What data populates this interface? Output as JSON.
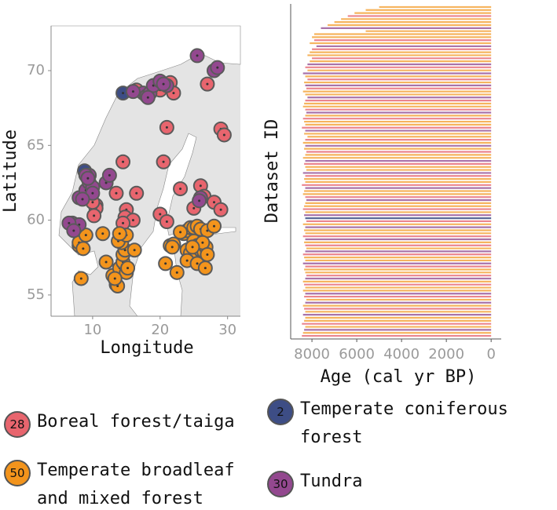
{
  "chart_data": [
    {
      "type": "scatter",
      "xlabel": "Longitude",
      "ylabel": "Latitude",
      "xlim": [
        3.84,
        31.9
      ],
      "ylim": [
        53.58,
        72.99
      ],
      "xticks": [
        10,
        20,
        30
      ],
      "yticks": [
        55,
        60,
        65,
        70
      ],
      "series": [
        {
          "name": "Boreal forest/taiga",
          "color": "#e8656e",
          "count": 28,
          "x": [
            14.5,
            20.5,
            21,
            21.5,
            22,
            20,
            27,
            29,
            29.5,
            13.5,
            16.5,
            15,
            14.8,
            16,
            14.5,
            10.5,
            10.5,
            10,
            23,
            26,
            26.5,
            25,
            28,
            29,
            20,
            21,
            10.2,
            16.5
          ],
          "y": [
            63.9,
            63.9,
            66.2,
            69.2,
            68.5,
            68.7,
            69.1,
            66.1,
            65.7,
            61.8,
            61.8,
            60.7,
            60.2,
            60,
            59.8,
            61,
            60.8,
            61.2,
            62.1,
            62.3,
            61.6,
            60.8,
            61.2,
            60.7,
            60.4,
            59.9,
            60.3,
            68.7
          ]
        },
        {
          "name": "Temperate coniferous forest",
          "color": "#3d4d85",
          "count": 2,
          "x": [
            8.8,
            14.5
          ],
          "y": [
            63.3,
            68.5
          ]
        },
        {
          "name": "Temperate broadleaf and mixed forest",
          "color": "#f3941c",
          "count": 50,
          "x": [
            8.3,
            8,
            8,
            9,
            11.5,
            12,
            13,
            13.5,
            13.7,
            14,
            14.5,
            14.5,
            14.8,
            14.3,
            13.8,
            15,
            15.2,
            16.2,
            15,
            14,
            21.5,
            22,
            20.8,
            22.5,
            23.5,
            24,
            24.5,
            25,
            25.5,
            26,
            27,
            28,
            24,
            24.5,
            25,
            24,
            25,
            25.5,
            26,
            26.5,
            26.8,
            26.3,
            27,
            25.5,
            26.7,
            23,
            21.8,
            24.8,
            13.3,
            8.6
          ],
          "y": [
            56.1,
            58.3,
            58.5,
            59,
            59.1,
            57.2,
            56.3,
            55.7,
            55.6,
            56.8,
            57.2,
            57.7,
            58,
            58.5,
            58.6,
            56.5,
            56.8,
            58,
            59,
            59.1,
            58.3,
            58.4,
            57.1,
            56.5,
            59.1,
            59.3,
            59.5,
            59.5,
            59.6,
            59.4,
            59.3,
            59.6,
            58,
            57.8,
            57.4,
            57.3,
            58.6,
            58.3,
            58,
            57.9,
            58.2,
            58.5,
            57.7,
            57.1,
            56.8,
            59.2,
            58.2,
            58.2,
            56.1,
            58.1
          ]
        },
        {
          "name": "Tundra",
          "color": "#93488f",
          "count": 30,
          "x": [
            7,
            7.5,
            8,
            6.5,
            8,
            9,
            9.5,
            9.5,
            10,
            10,
            12,
            12.5,
            9,
            8.5,
            7.2,
            17.5,
            18,
            18.5,
            19,
            20,
            21,
            20.5,
            25.5,
            28,
            28.5,
            16,
            18.2,
            26,
            25.8,
            9.3
          ],
          "y": [
            59.8,
            59.5,
            59.7,
            59.8,
            61.5,
            62,
            62.5,
            63,
            62.2,
            61.8,
            62.5,
            63,
            63,
            61.4,
            59.3,
            68.5,
            68.3,
            68.5,
            69,
            69.3,
            69,
            69.1,
            71,
            70,
            70.2,
            68.6,
            68.2,
            61.5,
            61.3,
            62.8
          ]
        }
      ]
    },
    {
      "type": "bar",
      "orientation": "horizontal",
      "xlabel": "Age (cal yr BP)",
      "ylabel": "Dataset ID",
      "xlim": [
        8950,
        -450
      ],
      "xticks": [
        8000,
        6000,
        4000,
        2000,
        0
      ],
      "values": [
        5000,
        5600,
        6100,
        6400,
        6700,
        7000,
        7300,
        7600,
        5600,
        7900,
        8000,
        7900,
        8100,
        7800,
        8000,
        8100,
        8200,
        8000,
        8100,
        8200,
        8300,
        8200,
        8400,
        8300,
        8200,
        8350,
        8300,
        8250,
        8400,
        8300,
        8200,
        8300,
        8350,
        8400,
        8300,
        8250,
        8300,
        8400,
        8350,
        8300,
        8450,
        8300,
        8350,
        8200,
        8300,
        8400,
        8300,
        8350,
        8250,
        8300,
        8400,
        8300,
        8350,
        8300,
        8250,
        8400,
        8300,
        8350,
        8300,
        8450,
        8300,
        8350,
        8400,
        8300,
        8250,
        8300,
        8350,
        8400,
        8300,
        8350,
        8300,
        8250,
        8400,
        8300,
        8350,
        8300,
        8400,
        8300,
        8350,
        8300,
        8250,
        8300,
        8400,
        8350,
        8300,
        8400,
        8300,
        8350,
        8300,
        8250,
        8300,
        8400,
        8350,
        8300,
        8400,
        8300,
        8350,
        8250,
        8300,
        8400,
        8350,
        8300,
        8400,
        8300,
        8350,
        8450,
        8300,
        8350,
        8400,
        8450
      ],
      "colors": [
        "#f5a742",
        "#f5a742",
        "#f5a742",
        "#e8707a",
        "#f5a742",
        "#f5a742",
        "#f5a742",
        "#9a5a9a",
        "#f5a742",
        "#f5a742",
        "#f5a742",
        "#e8707a",
        "#f5a742",
        "#9a5a9a",
        "#e8707a",
        "#f5a742",
        "#f5a742",
        "#e8707a",
        "#f5a742",
        "#9a5a9a",
        "#e8707a",
        "#f5a742",
        "#9a5a9a",
        "#f5a742",
        "#e8707a",
        "#f5a742",
        "#9a5a9a",
        "#e8707a",
        "#f5a742",
        "#f5a742",
        "#9a5a9a",
        "#e8707a",
        "#f5a742",
        "#f5a742",
        "#e8707a",
        "#9a5a9a",
        "#f5a742",
        "#e8707a",
        "#f5a742",
        "#f5a742",
        "#e8707a",
        "#9a5a9a",
        "#f5a742",
        "#f5a742",
        "#e8707a",
        "#f5a742",
        "#9a5a9a",
        "#f5a742",
        "#e8707a",
        "#f5a742",
        "#f5a742",
        "#9a5a9a",
        "#e8707a",
        "#f5a742",
        "#f5a742",
        "#9a5a9a",
        "#e8707a",
        "#f5a742",
        "#f5a742",
        "#e8707a",
        "#9a5a9a",
        "#f5a742",
        "#f5a742",
        "#e8707a",
        "#9a5a9a",
        "#f5a742",
        "#f5a742",
        "#e8707a",
        "#f5a742",
        "#9a5a9a",
        "#3d4d85",
        "#e8707a",
        "#f5a742",
        "#9a5a9a",
        "#f5a742",
        "#f5a742",
        "#e8707a",
        "#9a5a9a",
        "#f5a742",
        "#e8707a",
        "#f5a742",
        "#9a5a9a",
        "#e8707a",
        "#f5a742",
        "#f5a742",
        "#9a5a9a",
        "#e8707a",
        "#f5a742",
        "#f5a742",
        "#e8707a",
        "#9a5a9a",
        "#f5a742",
        "#e8707a",
        "#f5a742",
        "#f5a742",
        "#9a5a9a",
        "#e8707a",
        "#f5a742",
        "#9a5a9a",
        "#f5a742",
        "#e8707a",
        "#f5a742",
        "#9a5a9a",
        "#f5a742",
        "#f5a742",
        "#e8707a",
        "#f5a742",
        "#9a5a9a",
        "#f5a742",
        "#e8707a"
      ]
    }
  ]
}
